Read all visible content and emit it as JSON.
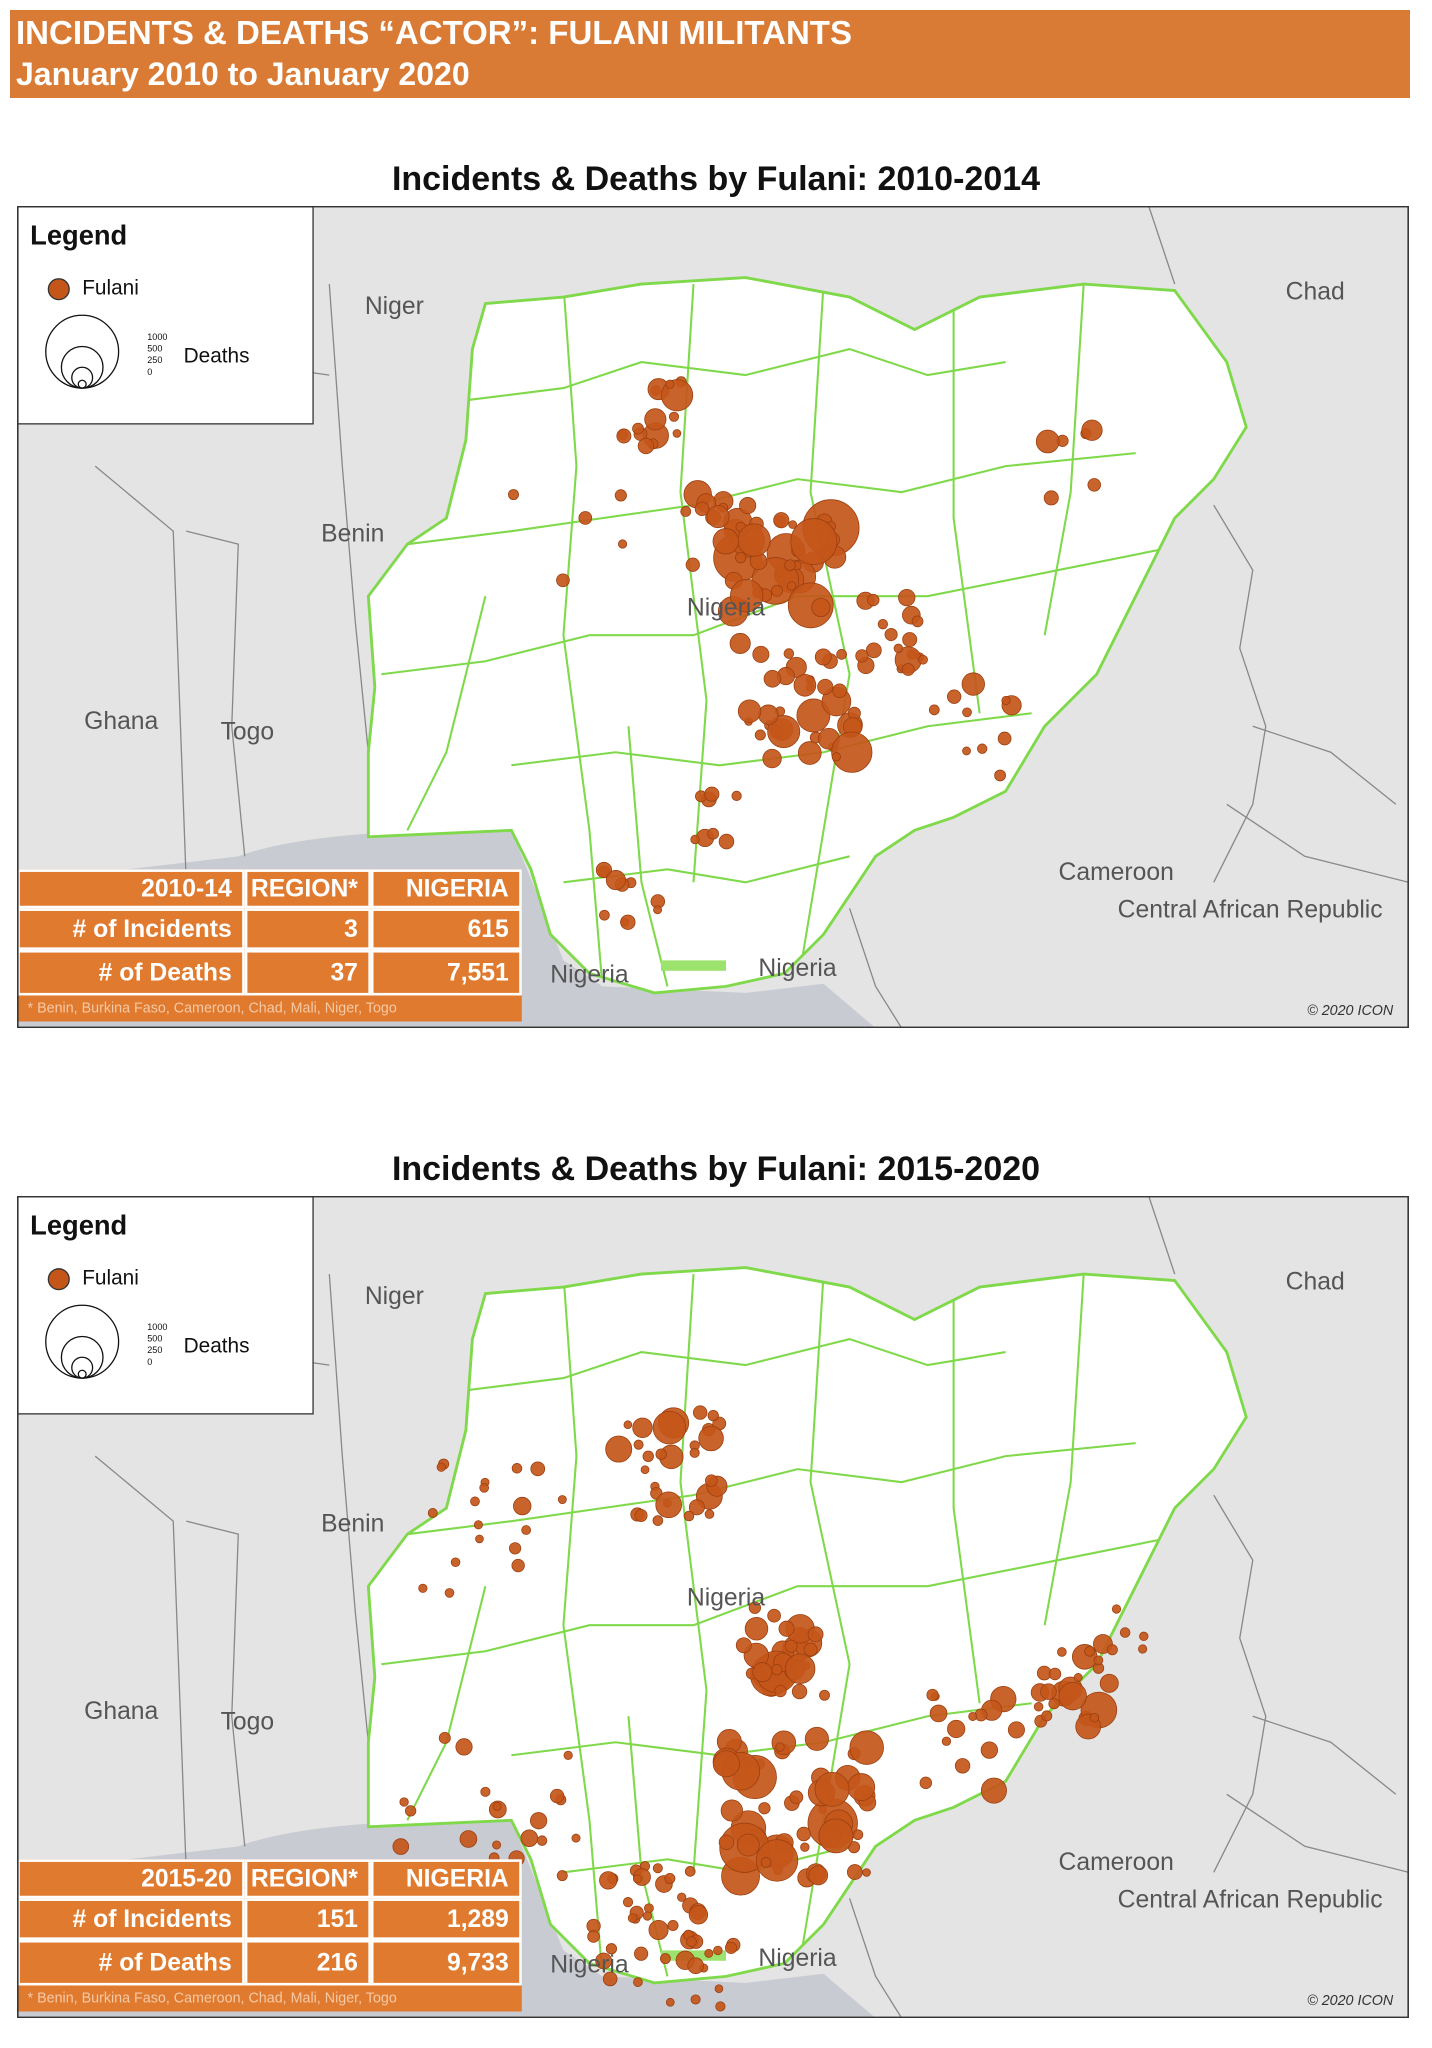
{
  "header": {
    "title": "INCIDENTS & DEATHS “ACTOR”: FULANI MILITANTS",
    "subtitle": "January 2010 to January 2020"
  },
  "maps": [
    {
      "title": "Incidents & Deaths by Fulani: 2010-2014",
      "legend": {
        "title": "Legend",
        "item": "Fulani",
        "size_labels": [
          "1000",
          "500",
          "250",
          "0"
        ],
        "size_title": "Deaths"
      },
      "places": {
        "niger": "Niger",
        "chad": "Chad",
        "benin": "Benin",
        "ghana": "Ghana",
        "togo": "Togo",
        "nigeria_center": "Nigeria",
        "cameroon": "Cameroon",
        "car": "Central African Republic",
        "nigeria_coast_1": "Nigeria",
        "nigeria_coast_2": "Nigeria"
      },
      "table": {
        "header": [
          "2010-14",
          "REGION*",
          "NIGERIA"
        ],
        "rows": [
          [
            "# of Incidents",
            "3",
            "615"
          ],
          [
            "# of Deaths",
            "37",
            "7,551"
          ]
        ],
        "note": "* Benin, Burkina Faso, Cameroon, Chad, Mali, Niger, Togo"
      },
      "credit": "© 2020 ICON"
    },
    {
      "title": "Incidents & Deaths by Fulani: 2015-2020",
      "legend": {
        "title": "Legend",
        "item": "Fulani",
        "size_labels": [
          "1000",
          "500",
          "250",
          "0"
        ],
        "size_title": "Deaths"
      },
      "places": {
        "niger": "Niger",
        "chad": "Chad",
        "benin": "Benin",
        "ghana": "Ghana",
        "togo": "Togo",
        "nigeria_center": "Nigeria",
        "cameroon": "Cameroon",
        "car": "Central African Republic",
        "nigeria_coast_1": "Nigeria",
        "nigeria_coast_2": "Nigeria"
      },
      "table": {
        "header": [
          "2015-20",
          "REGION*",
          "NIGERIA"
        ],
        "rows": [
          [
            "# of Incidents",
            "151",
            "1,289"
          ],
          [
            "# of Deaths",
            "216",
            "9,733"
          ]
        ],
        "note": "* Benin, Burkina Faso, Cameroon, Chad, Mali, Niger, Togo"
      },
      "credit": "© 2020 ICON"
    }
  ]
}
